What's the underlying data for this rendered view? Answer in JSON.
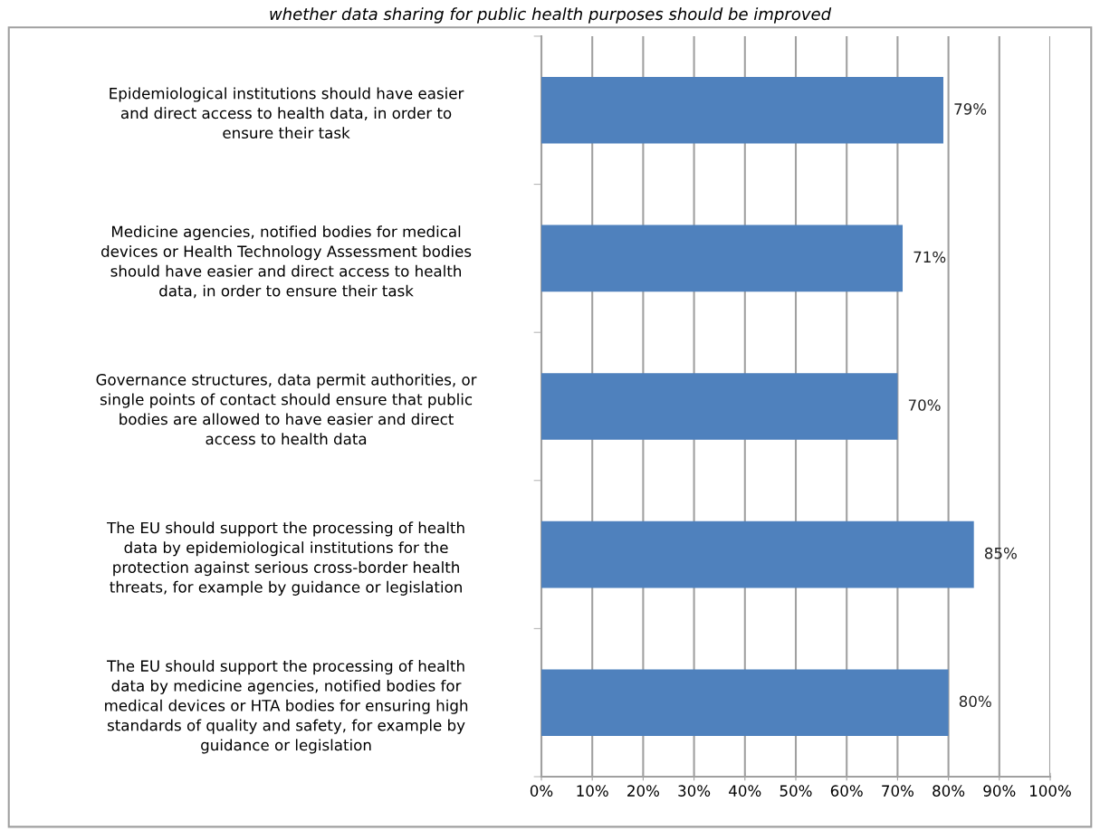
{
  "chart_data": {
    "type": "bar",
    "orientation": "horizontal",
    "title": "whether data sharing for public health purposes should be improved",
    "categories": [
      "Epidemiological institutions should have easier\nand direct access to health data, in order to\nensure their task",
      "Medicine agencies, notified bodies for medical\ndevices or Health Technology Assessment bodies\nshould have easier and direct access to health\ndata, in order to ensure their task",
      "Governance structures, data permit authorities, or\nsingle points of contact should ensure that public\nbodies are allowed to have easier and direct\naccess to health data",
      "The EU should support the processing of health\ndata by epidemiological institutions for the\nprotection against serious cross-border health\nthreats, for example by guidance or legislation",
      "The EU should support the processing of health\ndata by medicine agencies, notified bodies for\nmedical devices or HTA bodies for ensuring high\nstandards of quality and safety, for example by\nguidance or legislation"
    ],
    "values": [
      79,
      71,
      70,
      85,
      80
    ],
    "value_labels": [
      "79%",
      "71%",
      "70%",
      "85%",
      "80%"
    ],
    "color": "#4f81bd",
    "xlim": [
      0,
      100
    ],
    "xticks": [
      {
        "value": 0,
        "label": "0%"
      },
      {
        "value": 10,
        "label": "10%"
      },
      {
        "value": 20,
        "label": "20%"
      },
      {
        "value": 30,
        "label": "30%"
      },
      {
        "value": 40,
        "label": "40%"
      },
      {
        "value": 50,
        "label": "50%"
      },
      {
        "value": 60,
        "label": "60%"
      },
      {
        "value": 70,
        "label": "70%"
      },
      {
        "value": 80,
        "label": "80%"
      },
      {
        "value": 90,
        "label": "90%"
      },
      {
        "value": 100,
        "label": "100%"
      }
    ],
    "grid": "x"
  }
}
